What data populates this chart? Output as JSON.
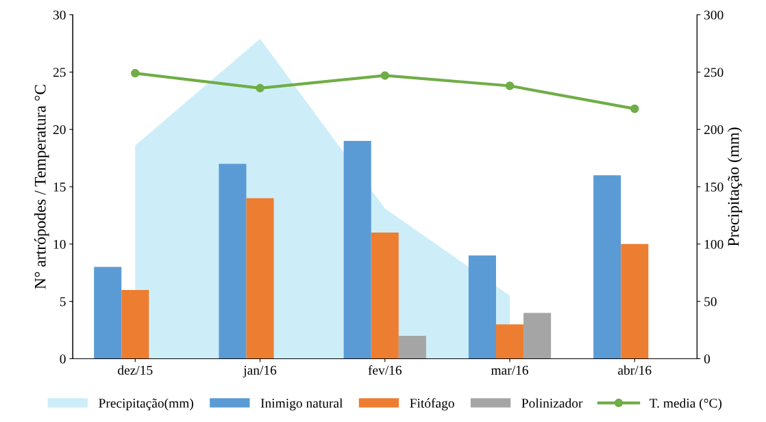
{
  "chart_data": {
    "type": "bar",
    "categories": [
      "dez/15",
      "jan/16",
      "fev/16",
      "mar/16",
      "abr/16"
    ],
    "ylabel": "N° artrópodes / Temperatura °C",
    "y2label": "Precipitação (mm)",
    "ylim": [
      0,
      30
    ],
    "yticks": [
      0,
      5,
      10,
      15,
      20,
      25,
      30
    ],
    "y2lim": [
      0,
      300
    ],
    "y2ticks": [
      0,
      50,
      100,
      150,
      200,
      250,
      300
    ],
    "legend": "bottom",
    "grid": false,
    "series": [
      {
        "name": "Precipitação(mm)",
        "type": "area",
        "axis": "y2",
        "color": "#cdeef8",
        "values": [
          186,
          279,
          131,
          55,
          null
        ]
      },
      {
        "name": "Inimigo natural",
        "color": "#5b9bd5",
        "values": [
          8,
          17,
          19,
          9,
          16
        ]
      },
      {
        "name": "Fitófago",
        "color": "#ed7d31",
        "values": [
          6,
          14,
          11,
          3,
          10
        ]
      },
      {
        "name": "Polinizador",
        "color": "#a5a5a5",
        "values": [
          0,
          0,
          2,
          4,
          0
        ]
      },
      {
        "name": "T. media (°C)",
        "type": "line",
        "color": "#70ad47",
        "marker": "circle",
        "values": [
          24.9,
          23.6,
          24.7,
          23.8,
          21.8
        ]
      }
    ]
  }
}
